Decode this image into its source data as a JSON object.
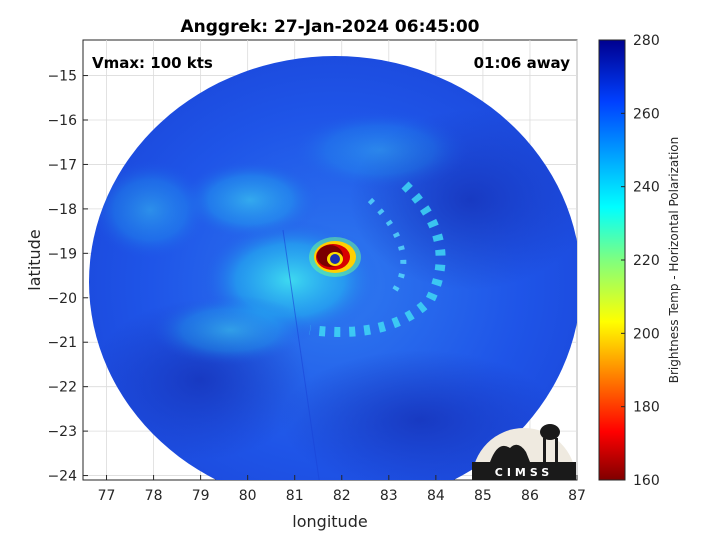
{
  "chart_data": {
    "type": "heatmap",
    "title": "Anggrek: 27-Jan-2024 06:45:00",
    "xlabel": "longitude",
    "ylabel": "latitude",
    "xlim": [
      76.5,
      87
    ],
    "ylim": [
      -24.1,
      -14.2
    ],
    "x_ticks": [
      77,
      78,
      79,
      80,
      81,
      82,
      83,
      84,
      85,
      86,
      87
    ],
    "y_ticks": [
      -15,
      -16,
      -17,
      -18,
      -19,
      -20,
      -21,
      -22,
      -23,
      -24
    ],
    "grid": true,
    "annotations": {
      "vmax": "Vmax: 100 kts",
      "away": "01:06 away"
    },
    "storm_center": {
      "lon": 81.8,
      "lat": -19.05
    },
    "colorbar": {
      "label": "Brightness Temp - Horizontal Polarization",
      "range": [
        160,
        280
      ],
      "ticks": [
        160,
        180,
        200,
        220,
        240,
        260,
        280
      ],
      "colormap": "jet"
    },
    "logo_text": "CIMSS"
  },
  "colors": {
    "field_background": "#1f55e8",
    "eyewall_hot": "#7a0000",
    "eye": "#1a2fb0"
  }
}
